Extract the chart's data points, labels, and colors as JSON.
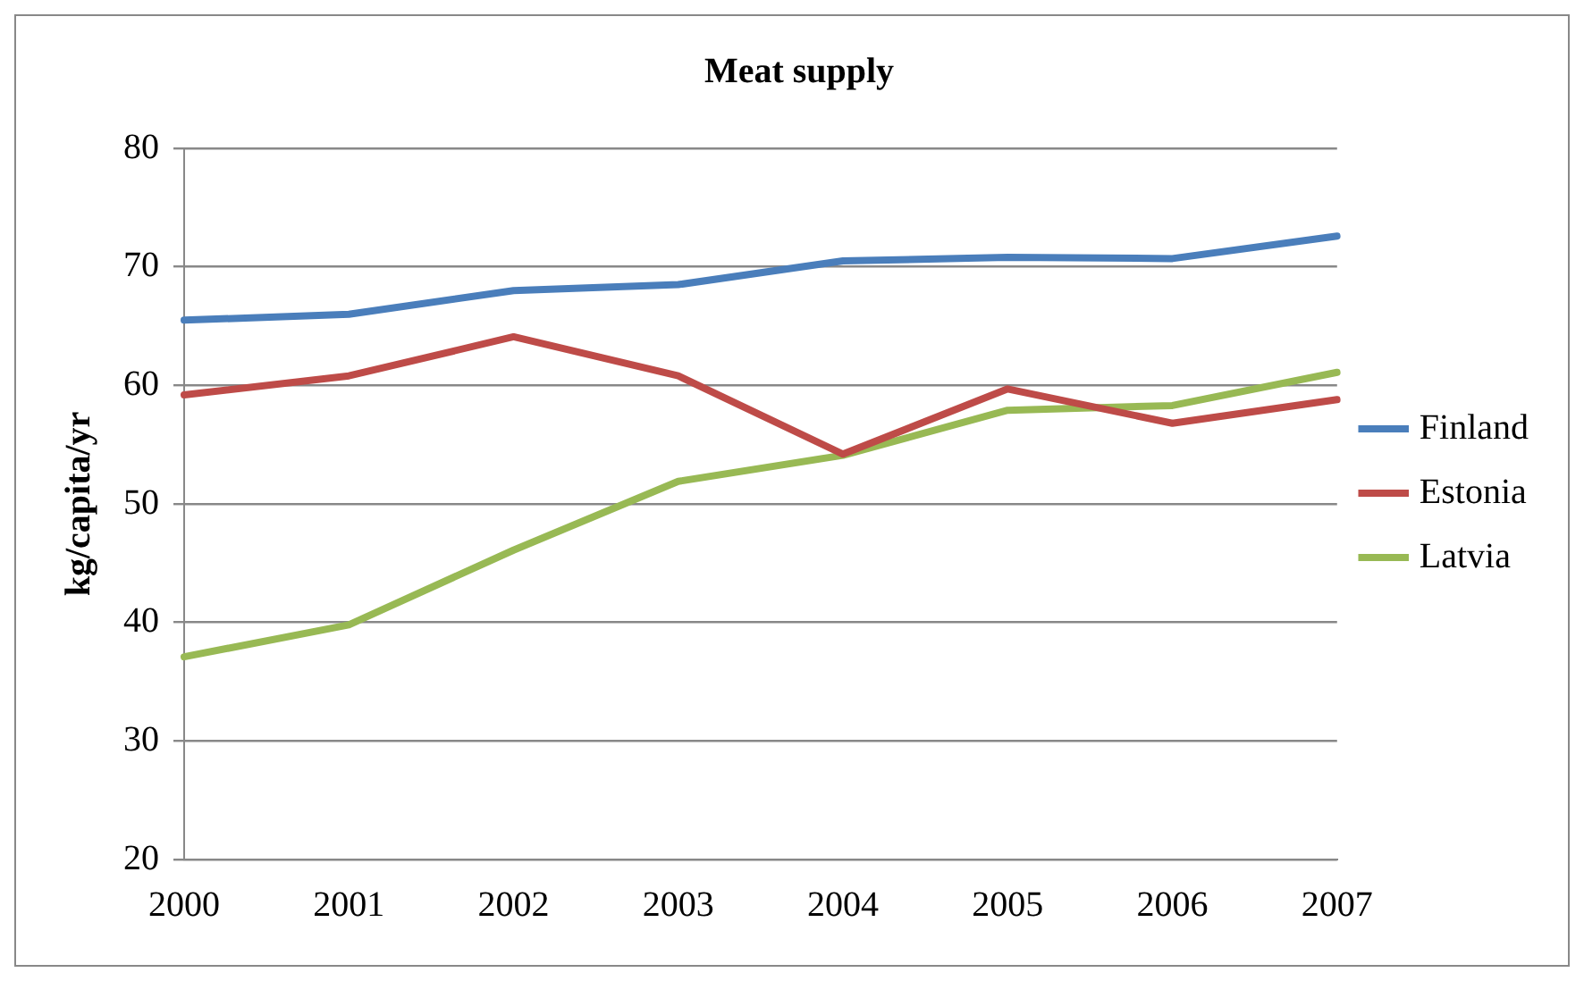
{
  "chart_data": {
    "type": "line",
    "title": "Meat supply",
    "ylabel": "kg/capita/yr",
    "categories": [
      "2000",
      "2001",
      "2002",
      "2003",
      "2004",
      "2005",
      "2006",
      "2007"
    ],
    "series": [
      {
        "name": "Finland",
        "color": "#4a7ebb",
        "values": [
          65.5,
          66,
          68,
          68.5,
          70.5,
          70.8,
          70.7,
          72.6
        ]
      },
      {
        "name": "Estonia",
        "color": "#be4b48",
        "values": [
          59.2,
          60.8,
          64.1,
          60.8,
          54.2,
          59.7,
          56.8,
          58.8
        ]
      },
      {
        "name": "Latvia",
        "color": "#98b954",
        "values": [
          37.1,
          39.8,
          46.1,
          51.9,
          54.1,
          57.9,
          58.3,
          61.1
        ]
      }
    ],
    "ylim": [
      20,
      80
    ],
    "yticks": [
      20,
      30,
      40,
      50,
      60,
      70,
      80
    ],
    "grid": "y",
    "legend": "right",
    "marker": "none",
    "line_style": "solid"
  }
}
